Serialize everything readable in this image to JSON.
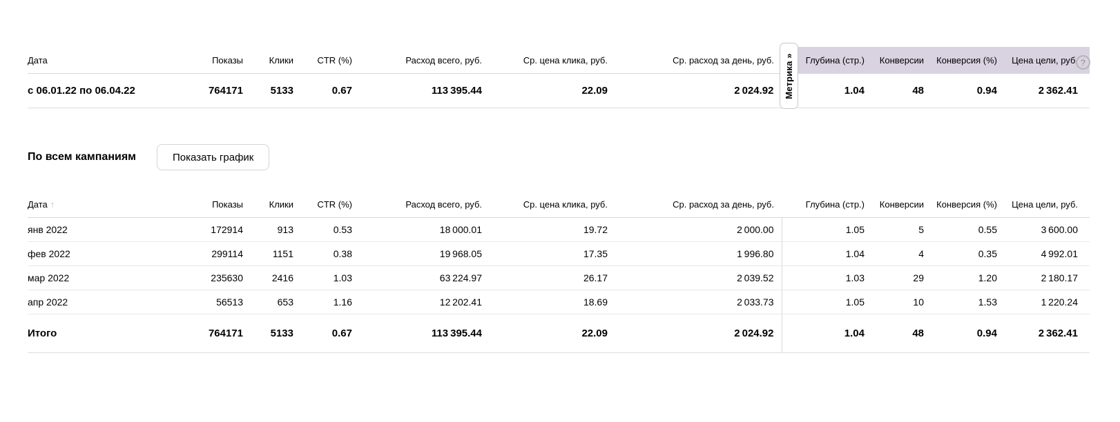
{
  "colors": {
    "metric_highlight_bg": "#d8d2e1",
    "sort_arrow": "#9cc3e5"
  },
  "summary_table": {
    "headers": [
      "Дата",
      "Показы",
      "Клики",
      "CTR (%)",
      "Расход всего, руб.",
      "Ср. цена клика, руб.",
      "Ср. расход за день, руб.",
      "Глубина (стр.)",
      "Конверсии",
      "Конверсия (%)",
      "Цена цели, руб."
    ],
    "rows": [
      [
        "с 06.01.22 по 06.04.22",
        "764171",
        "5133",
        "0.67",
        "113 395.44",
        "22.09",
        "2 024.92",
        "1.04",
        "48",
        "0.94",
        "2 362.41"
      ]
    ],
    "metrika_tab_label": "Метрика »",
    "help_icon": "?"
  },
  "section": {
    "title": "По всем кампаниям",
    "show_chart_button": "Показать график"
  },
  "detail_table": {
    "headers": [
      "Дата",
      "Показы",
      "Клики",
      "CTR (%)",
      "Расход всего, руб.",
      "Ср. цена клика, руб.",
      "Ср. расход за день, руб.",
      "Глубина (стр.)",
      "Конверсии",
      "Конверсия (%)",
      "Цена цели, руб."
    ],
    "sort_arrow": "↑",
    "rows": [
      [
        "янв 2022",
        "172914",
        "913",
        "0.53",
        "18 000.01",
        "19.72",
        "2 000.00",
        "1.05",
        "5",
        "0.55",
        "3 600.00"
      ],
      [
        "фев 2022",
        "299114",
        "1151",
        "0.38",
        "19 968.05",
        "17.35",
        "1 996.80",
        "1.04",
        "4",
        "0.35",
        "4 992.01"
      ],
      [
        "мар 2022",
        "235630",
        "2416",
        "1.03",
        "63 224.97",
        "26.17",
        "2 039.52",
        "1.03",
        "29",
        "1.20",
        "2 180.17"
      ],
      [
        "апр 2022",
        "56513",
        "653",
        "1.16",
        "12 202.41",
        "18.69",
        "2 033.73",
        "1.05",
        "10",
        "1.53",
        "1 220.24"
      ]
    ],
    "totals": [
      "Итого",
      "764171",
      "5133",
      "0.67",
      "113 395.44",
      "22.09",
      "2 024.92",
      "1.04",
      "48",
      "0.94",
      "2 362.41"
    ]
  }
}
